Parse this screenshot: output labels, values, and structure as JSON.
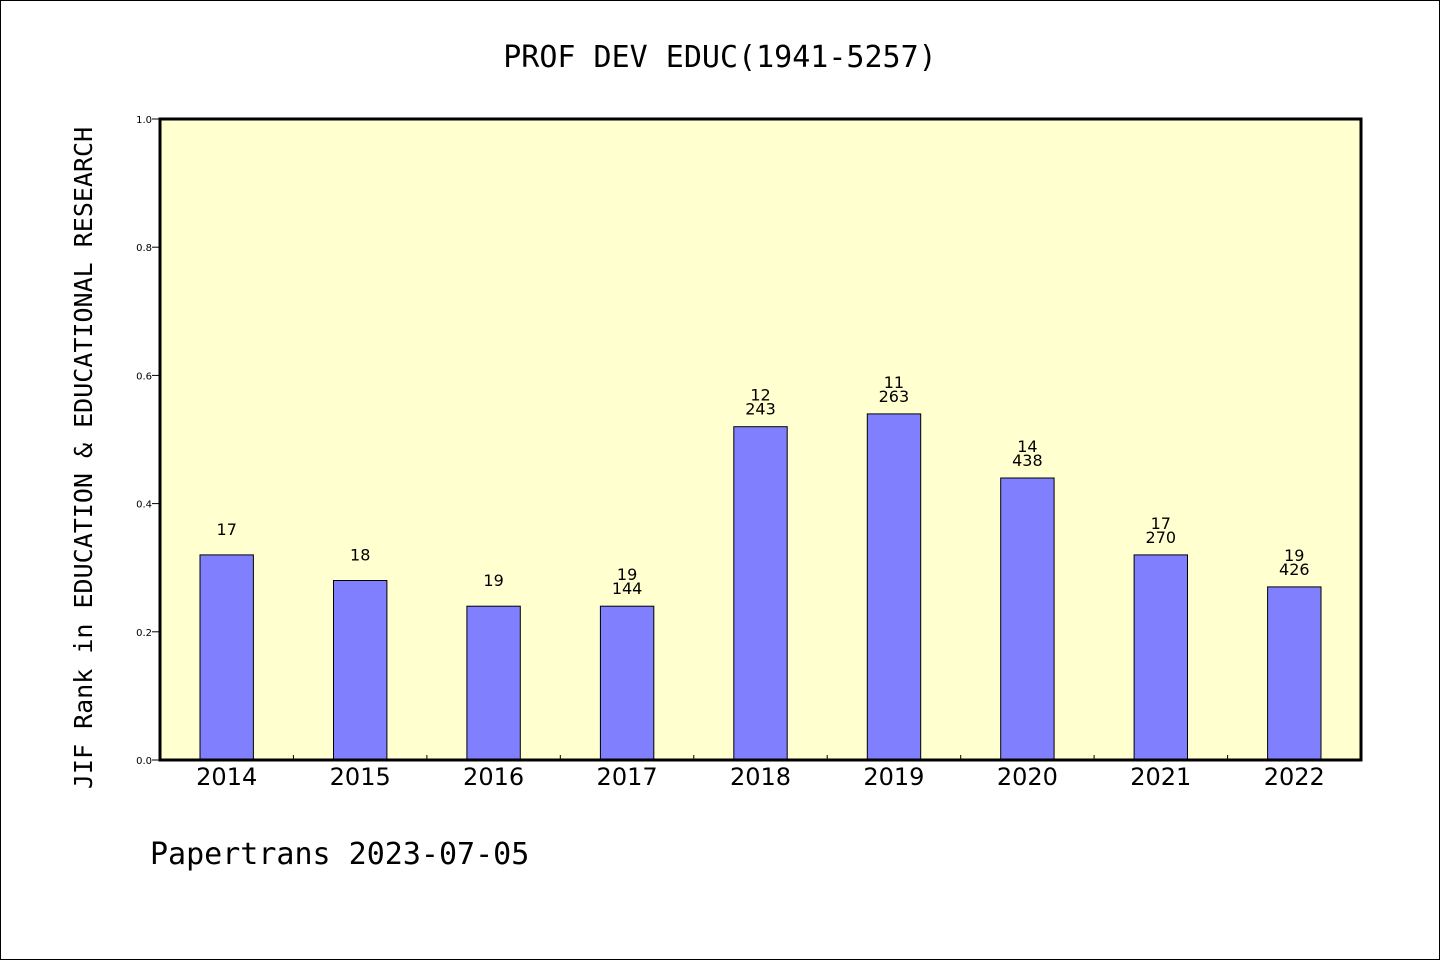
{
  "colors": {
    "plot_background": "#ffffd0",
    "bar_fill": "#8080ff",
    "bar_stroke": "#000000",
    "axis": "#000000"
  },
  "chart_data": {
    "type": "bar",
    "title": "PROF DEV EDUC(1941-5257)",
    "xlabel": "",
    "ylabel": "JIF Rank in EDUCATION & EDUCATIONAL RESEARCH",
    "ylim": [
      0,
      1.0
    ],
    "yticks": [
      "0.0",
      "0.2",
      "0.4",
      "0.6",
      "0.8",
      "1.0"
    ],
    "grid": false,
    "categories": [
      "2014",
      "2015",
      "2016",
      "2017",
      "2018",
      "2019",
      "2020",
      "2021",
      "2022"
    ],
    "values": [
      0.32,
      0.28,
      0.24,
      0.24,
      0.52,
      0.54,
      0.44,
      0.32,
      0.27
    ],
    "data_labels": [
      [
        "17"
      ],
      [
        "18"
      ],
      [
        "19"
      ],
      [
        "19",
        "144"
      ],
      [
        "12",
        "243"
      ],
      [
        "11",
        "263"
      ],
      [
        "14",
        "438"
      ],
      [
        "17",
        "270"
      ],
      [
        "19",
        "426"
      ]
    ]
  },
  "footer": {
    "text": "Papertrans 2023-07-05"
  }
}
